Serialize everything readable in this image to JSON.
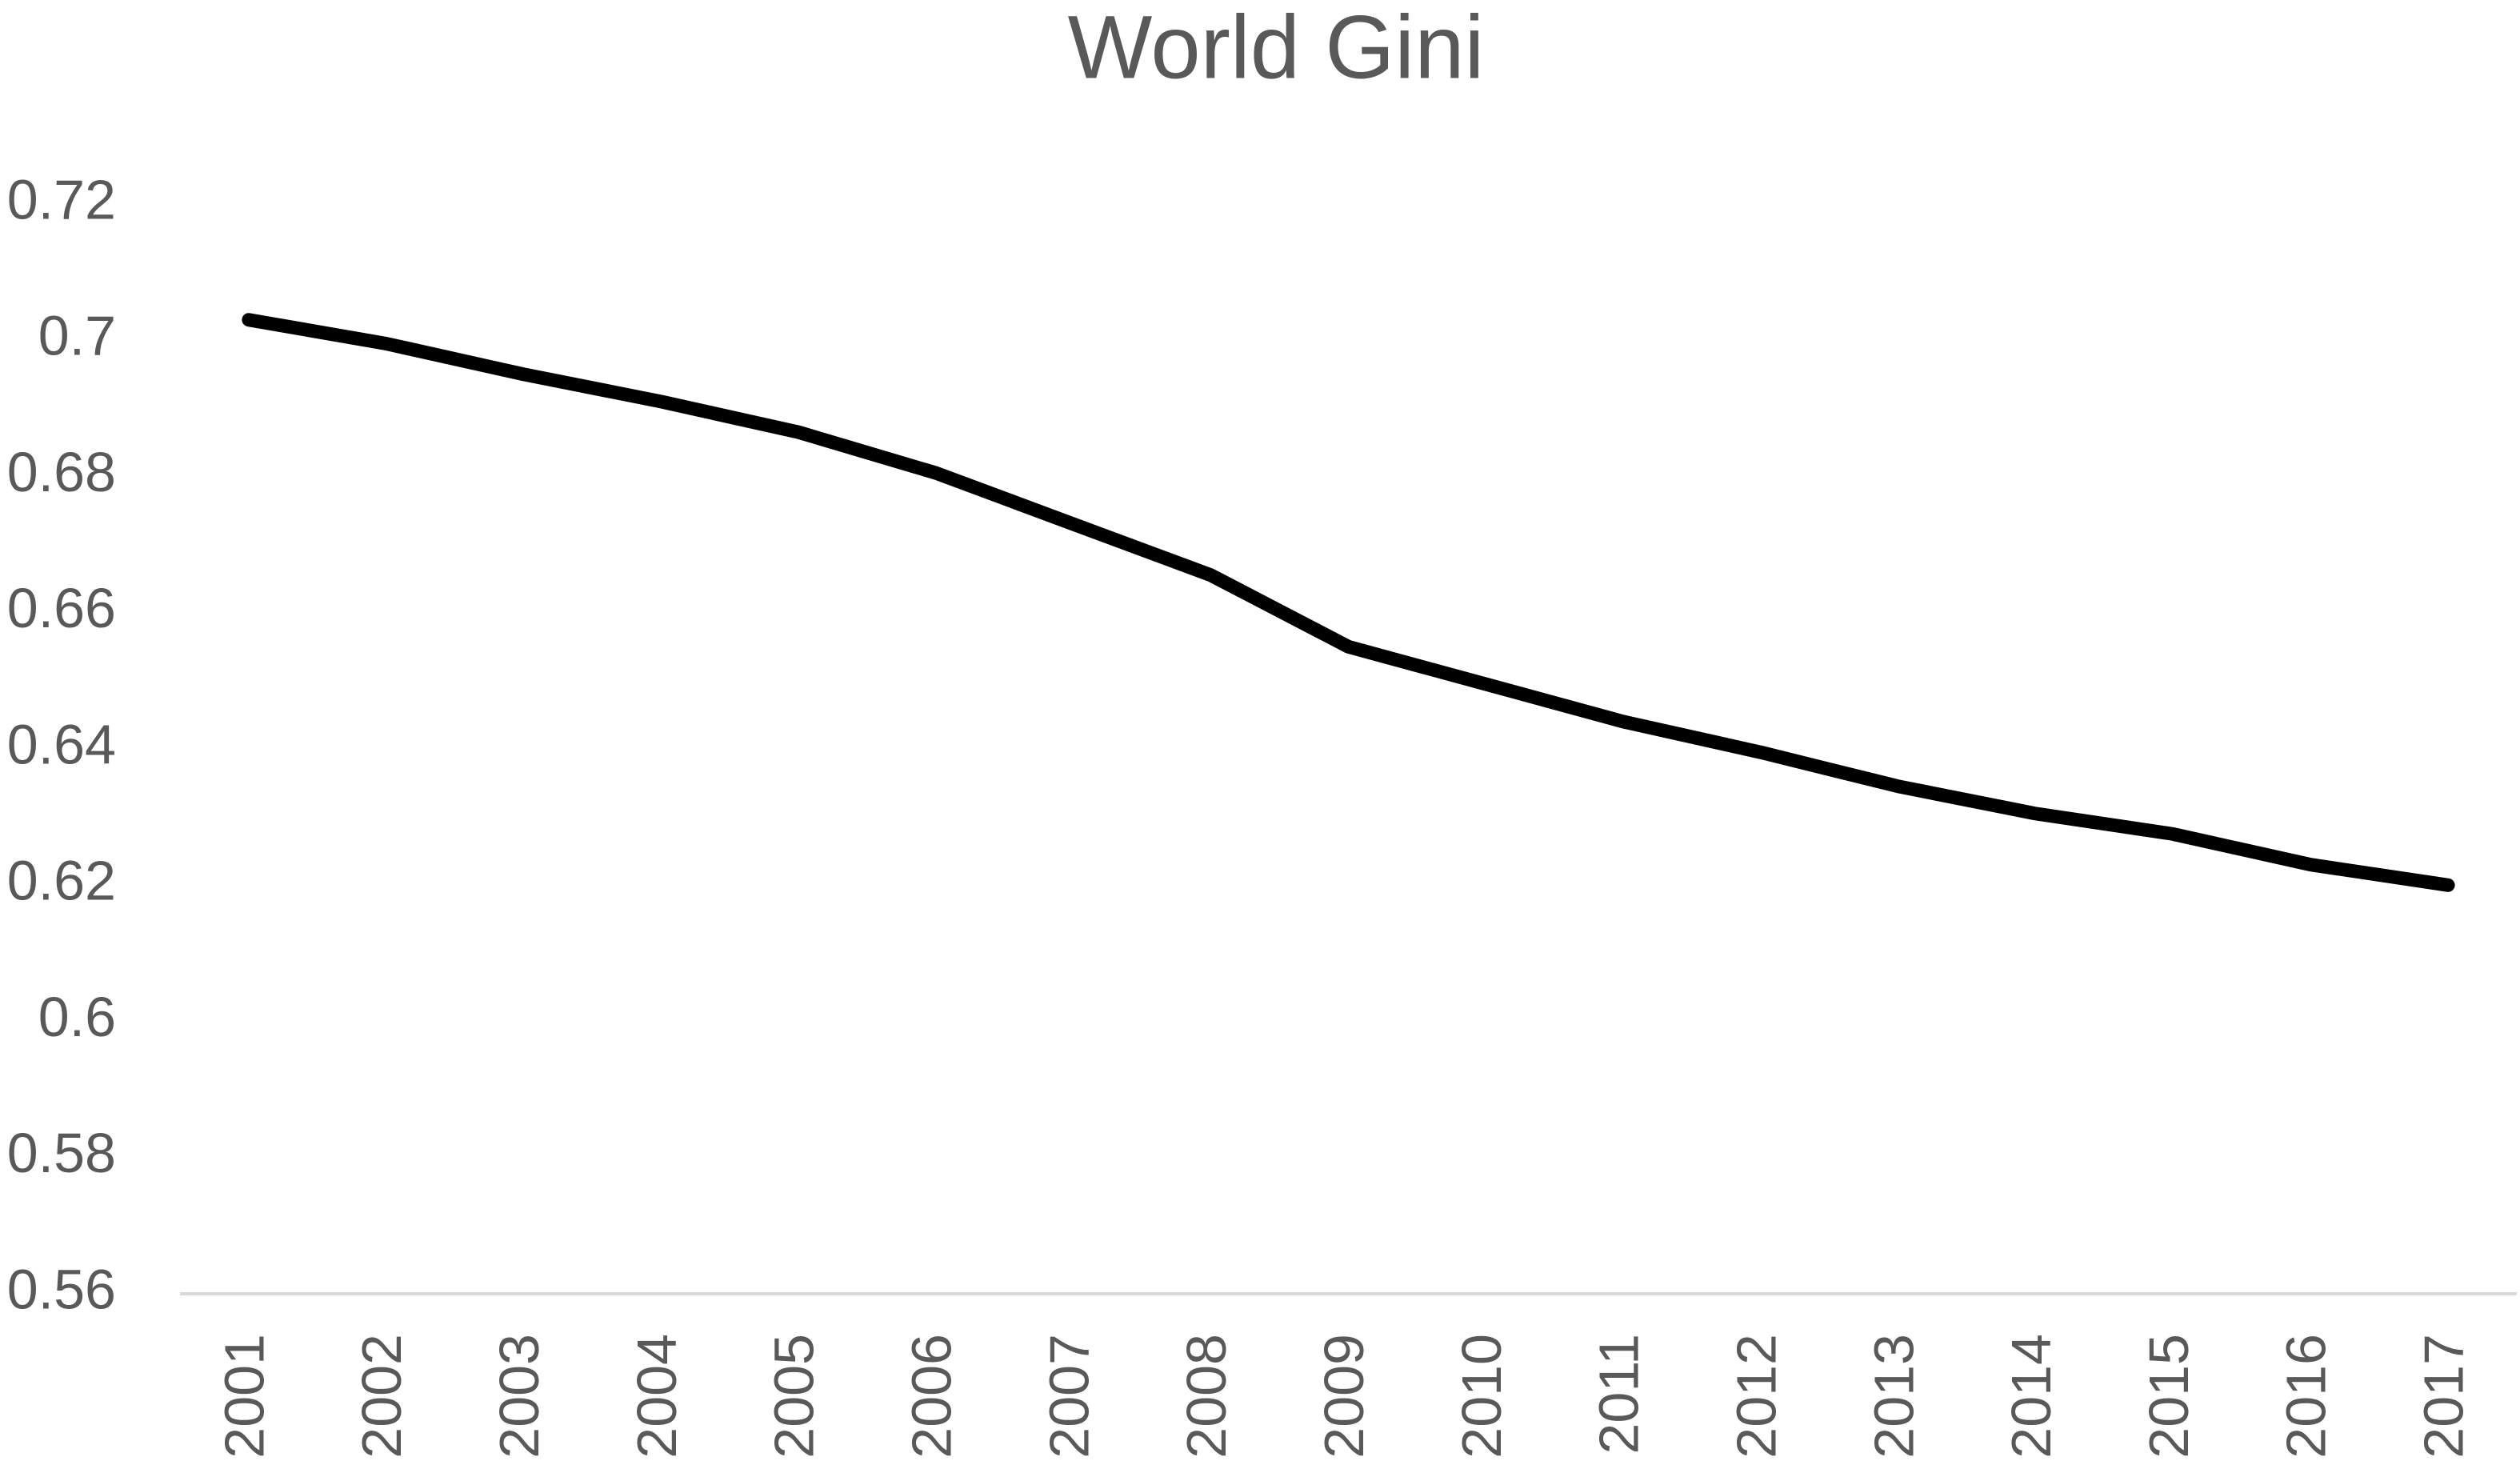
{
  "chart_data": {
    "type": "line",
    "title": "World Gini",
    "categories": [
      "2001",
      "2002",
      "2003",
      "2004",
      "2005",
      "2006",
      "2007",
      "2008",
      "2009",
      "2010",
      "2011",
      "2012",
      "2013",
      "2014",
      "2015",
      "2016",
      "2017"
    ],
    "series": [
      {
        "name": "World Gini",
        "color": "#000000",
        "values": [
          0.703,
          0.6995,
          0.695,
          0.691,
          0.6865,
          0.6805,
          0.673,
          0.6655,
          0.655,
          0.6495,
          0.644,
          0.6395,
          0.6345,
          0.6305,
          0.6275,
          0.623,
          0.62
        ]
      }
    ],
    "ylim": [
      0.56,
      0.72
    ],
    "yticks": [
      0.56,
      0.58,
      0.6,
      0.62,
      0.64,
      0.66,
      0.68,
      0.7,
      0.72
    ],
    "grid": false
  }
}
